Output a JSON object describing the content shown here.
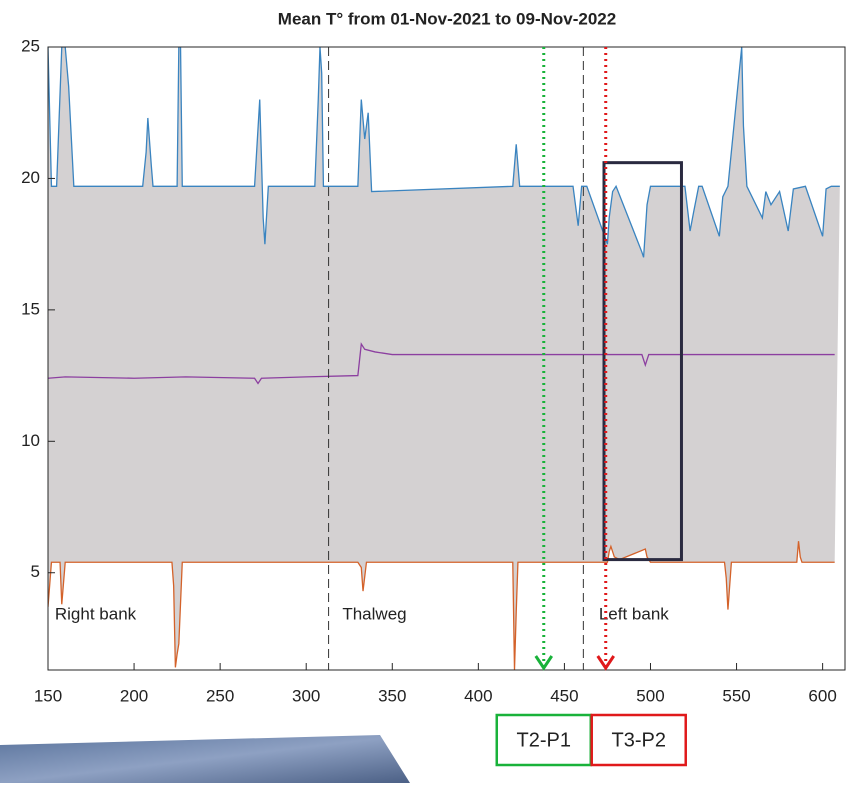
{
  "chart_data": {
    "type": "line",
    "title": "Mean T° from 01-Nov-2021 to 09-Nov-2022",
    "xlim": [
      150,
      613
    ],
    "xticks": [
      150,
      200,
      250,
      300,
      350,
      400,
      450,
      500,
      550,
      600
    ],
    "ylim": [
      1.3,
      25
    ],
    "yticks": [
      5,
      10,
      15,
      20,
      25
    ],
    "fill_between": {
      "color": "#d4d1d2"
    },
    "series": [
      {
        "color": "#3a84c0",
        "x": [
          150,
          152,
          155,
          158,
          160,
          162,
          165,
          205,
          207,
          208,
          210,
          211,
          225,
          226,
          227,
          228,
          270,
          273,
          275,
          276,
          278,
          305,
          307,
          308,
          309,
          310,
          330,
          332,
          334,
          336,
          338,
          420,
          422,
          424,
          455,
          458,
          460,
          463,
          475,
          476,
          478,
          480,
          495,
          496,
          498,
          500,
          520,
          523,
          525,
          528,
          530,
          540,
          542,
          545,
          553,
          554,
          556,
          565,
          567,
          570,
          575,
          580,
          583,
          590,
          600,
          602,
          605,
          610
        ],
        "values": [
          25,
          19.7,
          19.7,
          25,
          25,
          23.5,
          19.7,
          19.7,
          21,
          22.3,
          20.5,
          19.7,
          19.7,
          25,
          25,
          19.7,
          19.7,
          23,
          18.5,
          17.5,
          19.7,
          19.7,
          23,
          25,
          24,
          19.7,
          19.7,
          23,
          21.5,
          22.5,
          19.5,
          19.7,
          21.3,
          19.7,
          19.7,
          18.2,
          19.7,
          19.7,
          17.5,
          18.5,
          19.5,
          19.7,
          17.2,
          17,
          19,
          19.7,
          19.7,
          18,
          18.7,
          19.7,
          19.7,
          17.8,
          19.3,
          19.7,
          25,
          22,
          19.7,
          18.5,
          19.5,
          19,
          19.5,
          18,
          19.6,
          19.7,
          17.8,
          19.6,
          19.7,
          19.7
        ]
      },
      {
        "color": "#8c3fa0",
        "x": [
          150,
          160,
          200,
          230,
          270,
          272,
          274,
          300,
          330,
          332,
          334,
          340,
          350,
          400,
          460,
          495,
          497,
          499,
          550,
          607
        ],
        "values": [
          12.4,
          12.45,
          12.4,
          12.45,
          12.4,
          12.2,
          12.4,
          12.45,
          12.5,
          13.7,
          13.5,
          13.4,
          13.3,
          13.3,
          13.3,
          13.3,
          12.9,
          13.3,
          13.3,
          13.3
        ]
      },
      {
        "color": "#d4622a",
        "x": [
          150,
          152,
          155,
          157,
          158,
          160,
          222,
          223,
          224,
          225,
          226,
          228,
          330,
          332,
          333,
          335,
          420,
          421,
          422,
          423,
          475,
          476,
          477,
          479,
          482,
          497,
          498,
          500,
          543,
          544,
          545,
          547,
          585,
          586,
          587,
          588,
          607
        ],
        "values": [
          3.7,
          5.4,
          5.4,
          5.4,
          3.8,
          5.4,
          5.4,
          4.5,
          1.4,
          1.9,
          2.3,
          5.4,
          5.4,
          5.2,
          4.3,
          5.4,
          5.4,
          1.3,
          3.5,
          5.4,
          5.4,
          5.8,
          6.0,
          5.6,
          5.5,
          5.9,
          5.6,
          5.4,
          5.4,
          4.8,
          3.6,
          5.4,
          5.4,
          6.2,
          5.6,
          5.4,
          5.4
        ]
      }
    ],
    "vlines": [
      313,
      461
    ],
    "regions": [
      {
        "label": "Right bank",
        "x": 154
      },
      {
        "label": "Thalweg",
        "x": 321
      },
      {
        "label": "Left bank",
        "x": 470
      }
    ],
    "region_label_y": 3.4,
    "highlight_box": {
      "x": [
        473,
        518
      ],
      "y": [
        5.5,
        20.6
      ],
      "color": "#2a2a40"
    },
    "arrows": [
      {
        "x": 438,
        "label": "T2-P1",
        "color": "#19b23a"
      },
      {
        "x": 474,
        "label": "T3-P2",
        "color": "#e0191b"
      }
    ]
  }
}
